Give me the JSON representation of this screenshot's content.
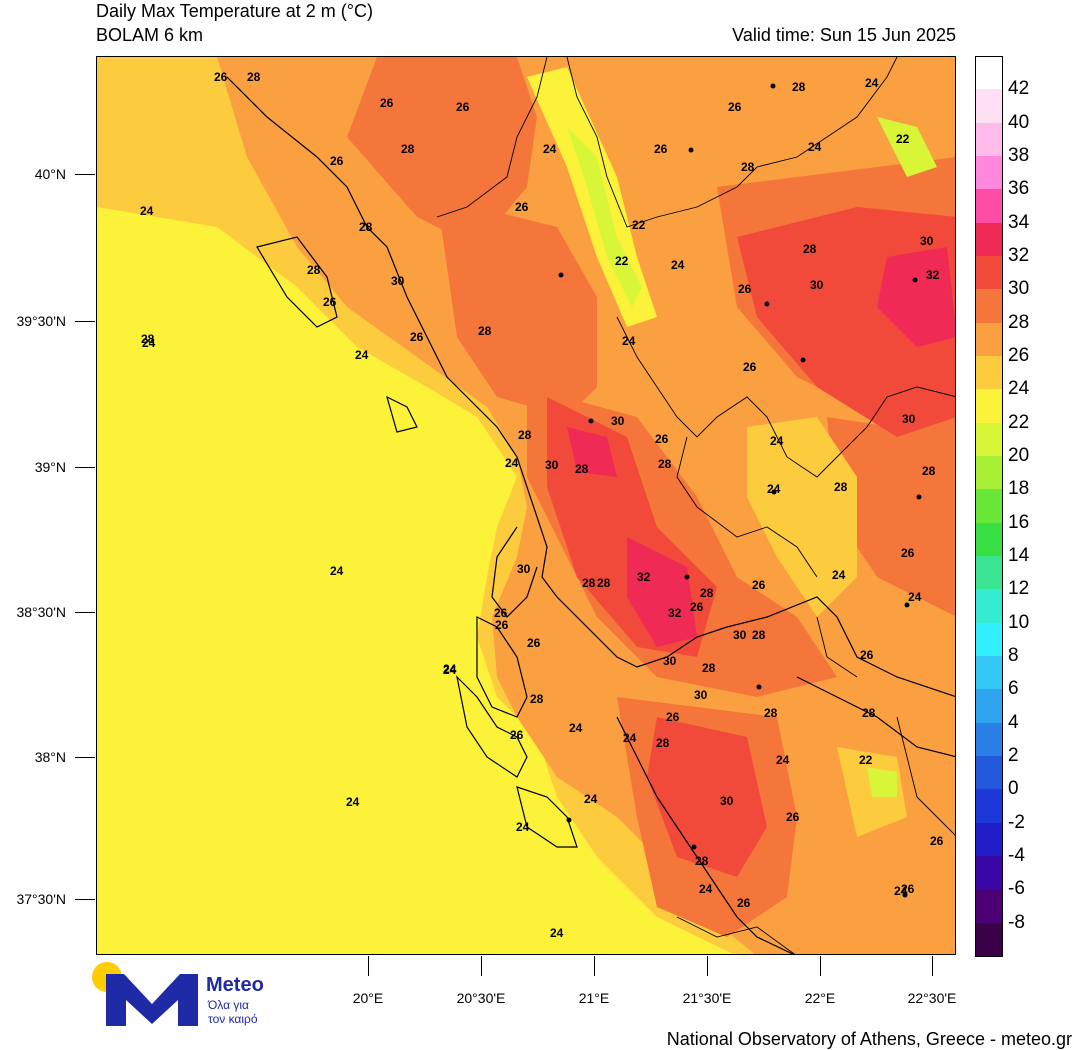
{
  "title": "Daily Max Temperature at 2 m (°C)",
  "model": "BOLAM 6 km",
  "valid_time": "Valid time: Sun 15 Jun 2025",
  "footer": "National Observatory of Athens, Greece - meteo.gr",
  "logo": {
    "name": "Meteo",
    "tagline_1": "Όλα για",
    "tagline_2": "τον καιρό"
  },
  "lat_labels": [
    "40°N",
    "39°30'N",
    "39°N",
    "38°30'N",
    "38°N",
    "37°30'N"
  ],
  "lon_labels": [
    "20°E",
    "20°30'E",
    "21°E",
    "21°30'E",
    "22°E",
    "22°30'E"
  ],
  "colorbar": {
    "labels": [
      "42",
      "40",
      "38",
      "36",
      "34",
      "32",
      "30",
      "28",
      "26",
      "24",
      "22",
      "20",
      "18",
      "16",
      "14",
      "12",
      "10",
      "8",
      "6",
      "4",
      "2",
      "0",
      "-2",
      "-4",
      "-6",
      "-8"
    ],
    "colors": [
      "#ffffff",
      "#ffe0f5",
      "#ffbbe9",
      "#ff88de",
      "#ff4da6",
      "#ef2a55",
      "#f24a3a",
      "#f5763a",
      "#fba040",
      "#fdcb3e",
      "#fdf23a",
      "#d8f538",
      "#a8ef35",
      "#6ae83a",
      "#38e044",
      "#3ae490",
      "#36ecd0",
      "#33f0ff",
      "#35c8f5",
      "#2fa4ee",
      "#2a7fe6",
      "#2158dc",
      "#1e37d8",
      "#1f1ec8",
      "#3a06a6",
      "#4c0073",
      "#3a0048"
    ]
  },
  "map_labels": [
    {
      "t": "26"
    },
    {
      "t": "28"
    },
    {
      "t": "26"
    },
    {
      "t": "26"
    },
    {
      "t": "28"
    },
    {
      "t": "26"
    },
    {
      "t": "24"
    },
    {
      "t": "26"
    },
    {
      "t": "28"
    },
    {
      "t": "26"
    },
    {
      "t": "24"
    },
    {
      "t": "22"
    },
    {
      "t": "24"
    },
    {
      "t": "26"
    },
    {
      "t": "28"
    },
    {
      "t": "28"
    },
    {
      "t": "28"
    },
    {
      "t": "30"
    },
    {
      "t": "26"
    },
    {
      "t": "28"
    },
    {
      "t": "30"
    },
    {
      "t": "32"
    },
    {
      "t": "22"
    },
    {
      "t": "24"
    },
    {
      "t": "22"
    },
    {
      "t": "24"
    },
    {
      "t": "28"
    },
    {
      "t": "26"
    },
    {
      "t": "24"
    },
    {
      "t": "28"
    },
    {
      "t": "24"
    },
    {
      "t": "26"
    },
    {
      "t": "30"
    },
    {
      "t": "26"
    },
    {
      "t": "24"
    },
    {
      "t": "28"
    },
    {
      "t": "24"
    },
    {
      "t": "30"
    },
    {
      "t": "28"
    },
    {
      "t": "28"
    },
    {
      "t": "26"
    },
    {
      "t": "24"
    },
    {
      "t": "28"
    },
    {
      "t": "30"
    },
    {
      "t": "30"
    },
    {
      "t": "28"
    },
    {
      "t": "26"
    },
    {
      "t": "24"
    },
    {
      "t": "30"
    },
    {
      "t": "28"
    },
    {
      "t": "32"
    },
    {
      "t": "26"
    },
    {
      "t": "24"
    },
    {
      "t": "28"
    },
    {
      "t": "26"
    },
    {
      "t": "28"
    },
    {
      "t": "32"
    },
    {
      "t": "28"
    },
    {
      "t": "26"
    },
    {
      "t": "30"
    },
    {
      "t": "30"
    },
    {
      "t": "28"
    },
    {
      "t": "26"
    },
    {
      "t": "24"
    },
    {
      "t": "28"
    },
    {
      "t": "26"
    },
    {
      "t": "26"
    },
    {
      "t": "26"
    },
    {
      "t": "28"
    },
    {
      "t": "30"
    },
    {
      "t": "26"
    },
    {
      "t": "28"
    },
    {
      "t": "28"
    },
    {
      "t": "24"
    },
    {
      "t": "24"
    },
    {
      "t": "24"
    },
    {
      "t": "22"
    },
    {
      "t": "24"
    },
    {
      "t": "30"
    },
    {
      "t": "26"
    },
    {
      "t": "24"
    },
    {
      "t": "24"
    },
    {
      "t": "26"
    },
    {
      "t": "26"
    },
    {
      "t": "28"
    },
    {
      "t": "24"
    },
    {
      "t": "26"
    },
    {
      "t": "24"
    },
    {
      "t": "24"
    },
    {
      "t": "24"
    },
    {
      "t": "24"
    },
    {
      "t": "24"
    }
  ]
}
